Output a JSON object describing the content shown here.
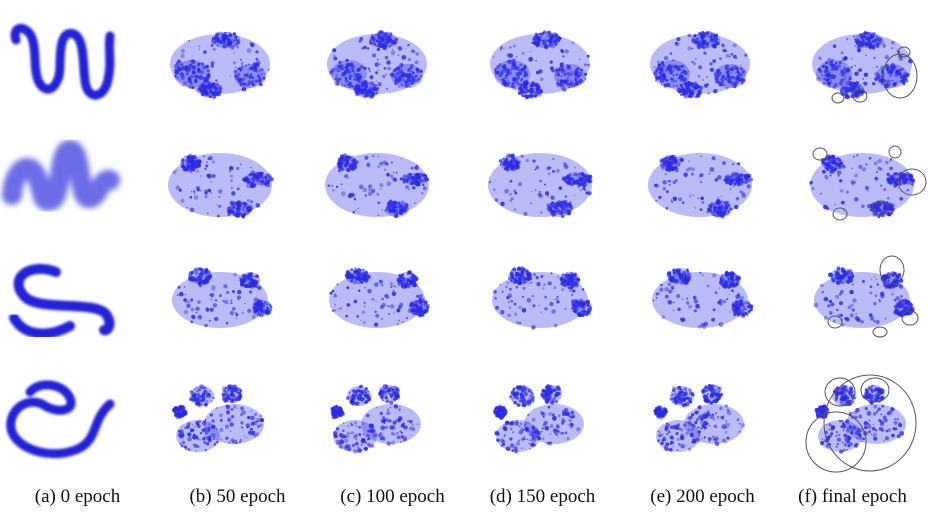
{
  "columns": [
    {
      "caption": "(a) 0 epoch"
    },
    {
      "caption": "(b) 50 epoch"
    },
    {
      "caption": "(c) 100 epoch"
    },
    {
      "caption": "(d) 150 epoch"
    },
    {
      "caption": "(e) 200 epoch"
    },
    {
      "caption": "(f) final epoch"
    }
  ],
  "colors": {
    "points": "#2a2ae6",
    "outline": "#555555",
    "background": "#ffffff"
  }
}
